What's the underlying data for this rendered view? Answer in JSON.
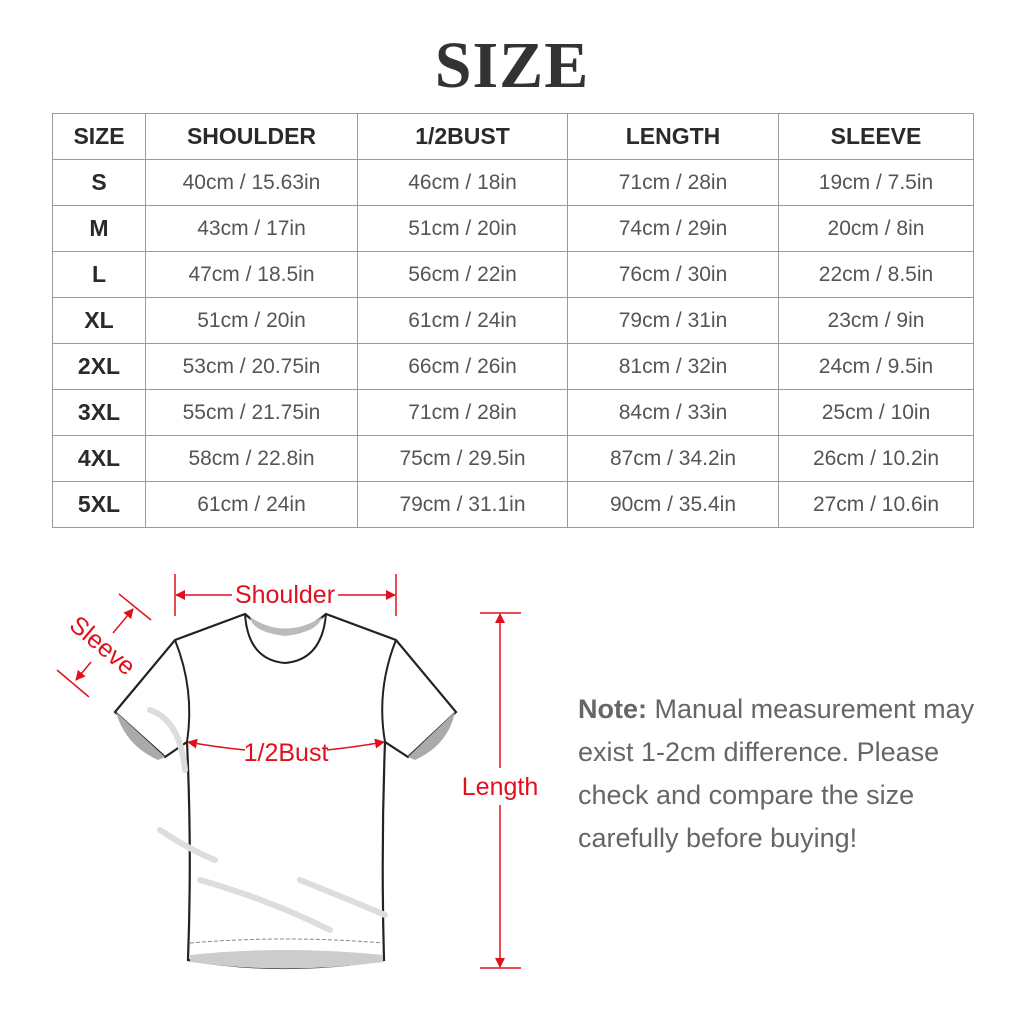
{
  "title": "SIZE",
  "table": {
    "headers": [
      "SIZE",
      "SHOULDER",
      "1/2BUST",
      "LENGTH",
      "SLEEVE"
    ],
    "rows": [
      [
        "S",
        "40cm / 15.63in",
        "46cm / 18in",
        "71cm / 28in",
        "19cm / 7.5in"
      ],
      [
        "M",
        "43cm / 17in",
        "51cm / 20in",
        "74cm / 29in",
        "20cm / 8in"
      ],
      [
        "L",
        "47cm / 18.5in",
        "56cm / 22in",
        "76cm / 30in",
        "22cm / 8.5in"
      ],
      [
        "XL",
        "51cm / 20in",
        "61cm / 24in",
        "79cm / 31in",
        "23cm / 9in"
      ],
      [
        "2XL",
        "53cm / 20.75in",
        "66cm / 26in",
        "81cm / 32in",
        "24cm / 9.5in"
      ],
      [
        "3XL",
        "55cm / 21.75in",
        "71cm / 28in",
        "84cm / 33in",
        "25cm / 10in"
      ],
      [
        "4XL",
        "58cm / 22.8in",
        "75cm / 29.5in",
        "87cm / 34.2in",
        "26cm / 10.2in"
      ],
      [
        "5XL",
        "61cm / 24in",
        "79cm / 31.1in",
        "90cm / 35.4in",
        "27cm / 10.6in"
      ]
    ]
  },
  "diagram": {
    "shoulder_label": "Shoulder",
    "sleeve_label": "Sleeve",
    "bust_label": "1/2Bust",
    "length_label": "Length",
    "annotation_color": "#e0101e"
  },
  "note": {
    "label": "Note:",
    "text": "Manual measurement may exist 1-2cm difference. Please check and compare the size carefully before buying!"
  }
}
